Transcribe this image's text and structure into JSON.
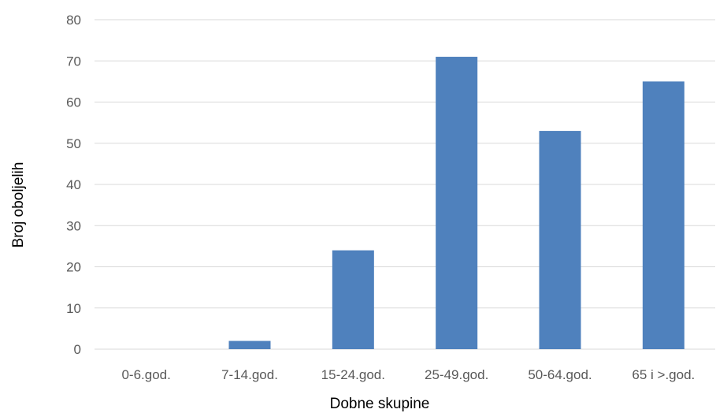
{
  "chart_data": {
    "type": "bar",
    "title": "",
    "xlabel": "Dobne skupine",
    "ylabel": "Broj oboljelih",
    "categories": [
      "0-6.god.",
      "7-14.god.",
      "15-24.god.",
      "25-49.god.",
      "50-64.god.",
      "65 i >.god."
    ],
    "values": [
      0,
      2,
      24,
      71,
      53,
      65
    ],
    "ylim": [
      0,
      80
    ],
    "yticks": [
      0,
      10,
      20,
      30,
      40,
      50,
      60,
      70,
      80
    ],
    "grid": true,
    "legend": "none",
    "bar_color": "#4f81bd",
    "grid_color": "#d9d9d9",
    "axis_color": "#d9d9d9"
  }
}
